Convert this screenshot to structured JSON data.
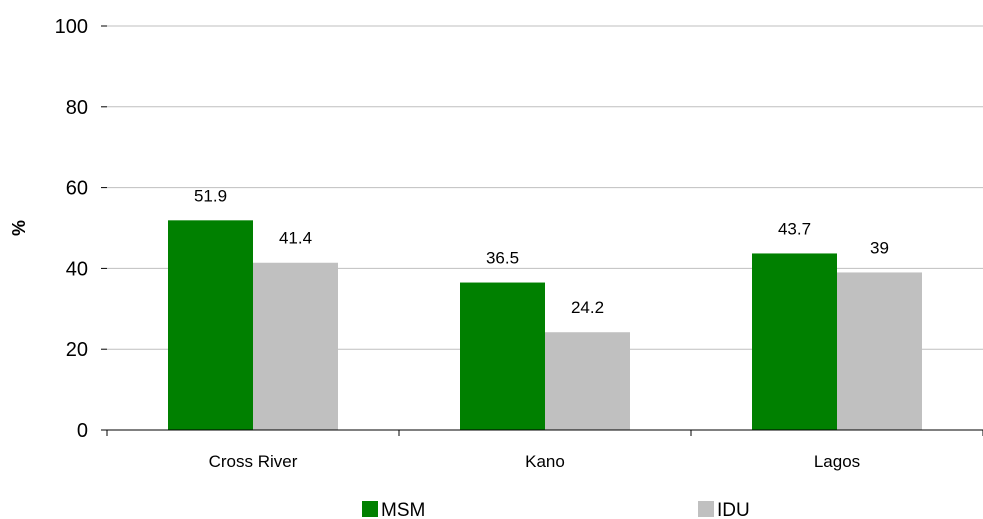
{
  "chart_data": {
    "type": "bar",
    "categories": [
      "Cross River",
      "Kano",
      "Lagos"
    ],
    "series": [
      {
        "name": "MSM",
        "values": [
          51.9,
          36.5,
          43.7
        ],
        "labels": [
          "51.9",
          "36.5",
          "43.7"
        ],
        "color": "#008000"
      },
      {
        "name": "IDU",
        "values": [
          41.4,
          24.2,
          39
        ],
        "labels": [
          "41.4",
          "24.2",
          "39"
        ],
        "color": "#c0c0c0"
      }
    ],
    "title": "",
    "xlabel": "",
    "ylabel": "%",
    "ylim": [
      0,
      100
    ],
    "yticks": [
      0,
      20,
      40,
      60,
      80,
      100
    ],
    "ytick_labels": [
      "0",
      "20",
      "40",
      "60",
      "80",
      "100"
    ],
    "grid": true,
    "legend_position": "bottom",
    "gridline_color": "#bfbfbf"
  }
}
